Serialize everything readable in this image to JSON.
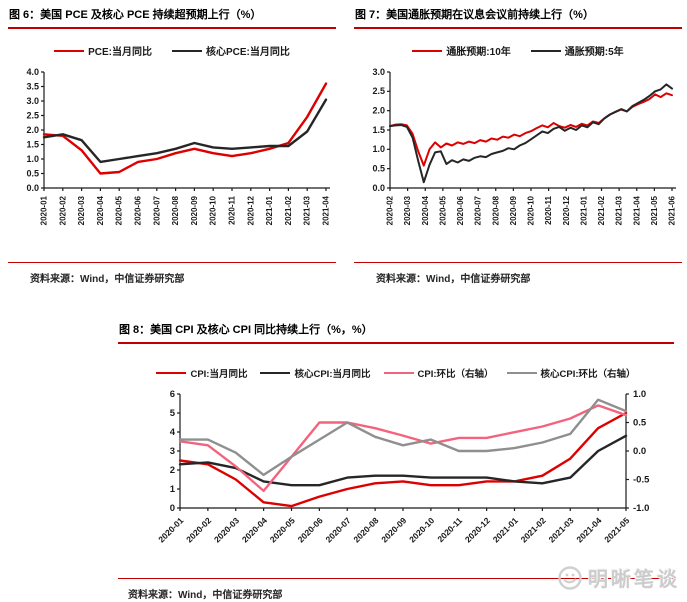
{
  "colors": {
    "rule_red": "#bf0000",
    "axis": "#1a1a1a",
    "red_line": "#dd0000",
    "dark_line": "#262626",
    "pink_line": "#f4637d",
    "gray_line": "#8f8f8f",
    "watermark_gray": "#cccccc"
  },
  "watermark": "明晰笔谈",
  "chart_data": [
    {
      "id": "figure6",
      "type": "line",
      "title": "图 6：美国 PCE 及核心 PCE 持续超预期上行（%）",
      "source": "资料来源：Wind，中信证券研究部",
      "grid": false,
      "legend_position": "top",
      "ylim": [
        0,
        4
      ],
      "ytick_step": 0.5,
      "ytick_decimals": 1,
      "categories": [
        "2020-01",
        "2020-02",
        "2020-03",
        "2020-04",
        "2020-05",
        "2020-06",
        "2020-07",
        "2020-08",
        "2020-09",
        "2020-10",
        "2020-11",
        "2020-12",
        "2021-01",
        "2021-02",
        "2021-03",
        "2021-04"
      ],
      "series": [
        {
          "name": "PCE:当月同比",
          "color": "#dd0000",
          "axis": "left",
          "values": [
            1.85,
            1.8,
            1.3,
            0.5,
            0.55,
            0.9,
            1.0,
            1.2,
            1.35,
            1.2,
            1.1,
            1.2,
            1.35,
            1.55,
            2.45,
            3.6
          ]
        },
        {
          "name": "核心PCE:当月同比",
          "color": "#262626",
          "axis": "left",
          "values": [
            1.75,
            1.85,
            1.65,
            0.9,
            1.0,
            1.1,
            1.2,
            1.35,
            1.55,
            1.4,
            1.35,
            1.4,
            1.45,
            1.45,
            1.95,
            3.05
          ]
        }
      ]
    },
    {
      "id": "figure7",
      "type": "line",
      "title": "图 7：美国通胀预期在议息会议前持续上行（%）",
      "source": "资料来源：Wind，中信证券研究部",
      "grid": false,
      "legend_position": "top",
      "ylim": [
        0,
        3
      ],
      "ytick_step": 0.5,
      "ytick_decimals": 1,
      "categories": [
        "2020-02",
        "2020-03",
        "2020-04",
        "2020-05",
        "2020-06",
        "2020-07",
        "2020-08",
        "2020-09",
        "2020-10",
        "2020-11",
        "2020-12",
        "2021-01",
        "2021-02",
        "2021-03",
        "2021-04",
        "2021-05",
        "2021-06"
      ],
      "series": [
        {
          "name": "通胀预期:10年",
          "color": "#dd0000",
          "axis": "left",
          "values": [
            1.6,
            1.64,
            1.65,
            1.62,
            1.4,
            0.95,
            0.58,
            1.0,
            1.18,
            1.05,
            1.15,
            1.1,
            1.18,
            1.14,
            1.2,
            1.16,
            1.24,
            1.2,
            1.28,
            1.25,
            1.33,
            1.3,
            1.38,
            1.34,
            1.42,
            1.47,
            1.55,
            1.62,
            1.57,
            1.68,
            1.6,
            1.56,
            1.63,
            1.58,
            1.66,
            1.62,
            1.72,
            1.68,
            1.8,
            1.9,
            1.97,
            2.03,
            1.98,
            2.1,
            2.17,
            2.23,
            2.3,
            2.42,
            2.35,
            2.45,
            2.4
          ]
        },
        {
          "name": "通胀预期:5年",
          "color": "#262626",
          "axis": "left",
          "values": [
            1.6,
            1.62,
            1.63,
            1.58,
            1.3,
            0.7,
            0.15,
            0.6,
            0.92,
            0.95,
            0.62,
            0.72,
            0.66,
            0.74,
            0.7,
            0.78,
            0.82,
            0.8,
            0.88,
            0.92,
            0.96,
            1.03,
            1.0,
            1.1,
            1.16,
            1.26,
            1.36,
            1.46,
            1.42,
            1.53,
            1.58,
            1.48,
            1.56,
            1.5,
            1.62,
            1.57,
            1.7,
            1.65,
            1.8,
            1.9,
            1.97,
            2.04,
            1.98,
            2.12,
            2.2,
            2.28,
            2.38,
            2.5,
            2.55,
            2.68,
            2.57
          ]
        }
      ]
    },
    {
      "id": "figure8",
      "type": "line",
      "title": "图 8：美国 CPI 及核心 CPI 同比持续上行（%，%）",
      "source": "资料来源：Wind，中信证券研究部",
      "grid": false,
      "legend_position": "top",
      "ylim": [
        0,
        6
      ],
      "ytick_step": 1,
      "ytick_decimals": 0,
      "ylim_right": [
        -1,
        1
      ],
      "y2tick_step": 0.5,
      "y2tick_decimals": 1,
      "categories": [
        "2020-01",
        "2020-02",
        "2020-03",
        "2020-04",
        "2020-05",
        "2020-06",
        "2020-07",
        "2020-08",
        "2020-09",
        "2020-10",
        "2020-11",
        "2020-12",
        "2021-01",
        "2021-02",
        "2021-03",
        "2021-04",
        "2021-05"
      ],
      "series": [
        {
          "name": "CPI:当月同比",
          "color": "#dd0000",
          "axis": "left",
          "values": [
            2.5,
            2.3,
            1.5,
            0.3,
            0.1,
            0.6,
            1.0,
            1.3,
            1.4,
            1.2,
            1.2,
            1.4,
            1.4,
            1.7,
            2.6,
            4.2,
            5.0
          ]
        },
        {
          "name": "核心CPI:当月同比",
          "color": "#262626",
          "axis": "left",
          "values": [
            2.3,
            2.4,
            2.1,
            1.4,
            1.2,
            1.2,
            1.6,
            1.7,
            1.7,
            1.6,
            1.6,
            1.6,
            1.4,
            1.3,
            1.6,
            3.0,
            3.8
          ]
        },
        {
          "name": "CPI:环比（右轴）",
          "color": "#f4637d",
          "axis": "right",
          "values": [
            0.17,
            0.1,
            -0.27,
            -0.7,
            -0.1,
            0.5,
            0.5,
            0.4,
            0.27,
            0.13,
            0.23,
            0.23,
            0.33,
            0.43,
            0.57,
            0.8,
            0.63
          ]
        },
        {
          "name": "核心CPI:环比（右轴）",
          "color": "#8f8f8f",
          "axis": "right",
          "values": [
            0.2,
            0.2,
            -0.03,
            -0.42,
            -0.1,
            0.2,
            0.5,
            0.25,
            0.1,
            0.2,
            0.0,
            0.0,
            0.05,
            0.15,
            0.3,
            0.9,
            0.7
          ]
        }
      ]
    }
  ]
}
